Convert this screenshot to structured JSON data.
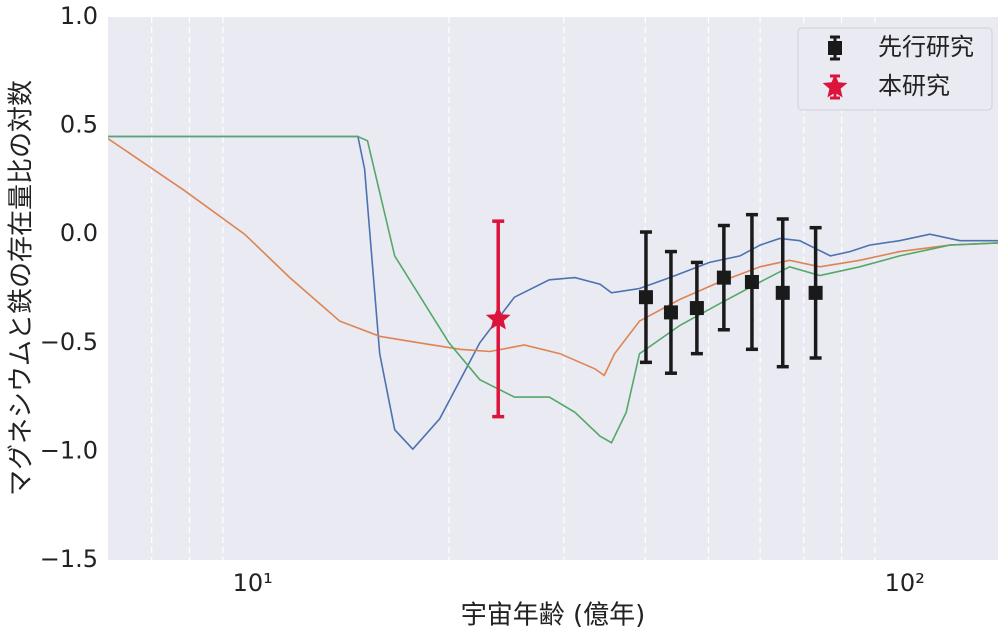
{
  "chart_data": {
    "type": "scatter",
    "xlabel": "宇宙年齢 (億年)",
    "ylabel": "マグネシウムと鉄の存在量比の対数",
    "xscale": "log",
    "xlim": [
      6,
      139
    ],
    "ylim": [
      -1.5,
      1.0
    ],
    "xticks": [
      {
        "value": 10,
        "label": "10¹"
      },
      {
        "value": 100,
        "label": "10²"
      }
    ],
    "xminorticks": [
      7,
      8,
      9,
      20,
      30,
      40,
      50,
      60,
      70,
      80,
      90
    ],
    "yticks": [
      {
        "value": -1.5,
        "label": "−1.5"
      },
      {
        "value": -1.0,
        "label": "−1.0"
      },
      {
        "value": -0.5,
        "label": "−0.5"
      },
      {
        "value": 0.0,
        "label": "0.0"
      },
      {
        "value": 0.5,
        "label": "0.5"
      },
      {
        "value": 1.0,
        "label": "1.0"
      }
    ],
    "grid": true,
    "legend": "upper right",
    "series": [
      {
        "name": "先行研究",
        "color": "#1a1a1a",
        "marker": "square",
        "x": [
          40.1,
          43.8,
          48.0,
          52.8,
          58.3,
          65.0,
          73.0
        ],
        "values": [
          -0.29,
          -0.36,
          -0.34,
          -0.2,
          -0.22,
          -0.27,
          -0.27
        ],
        "errors": [
          0.3,
          0.28,
          0.21,
          0.24,
          0.31,
          0.34,
          0.3
        ]
      },
      {
        "name": "本研究",
        "color": "#dc143c",
        "marker": "star",
        "x": [
          23.8
        ],
        "values": [
          -0.39
        ],
        "errors": [
          0.45
        ]
      }
    ],
    "lines": [
      {
        "color": "#4c72b0",
        "x": [
          6.0,
          14.5,
          14.85,
          15.66,
          16.51,
          17.6,
          19.36,
          22.3,
          25.2,
          28.5,
          31.2,
          34.1,
          35.5,
          39.2,
          43.6,
          50.2,
          55.9,
          60.0,
          64.3,
          69.0,
          76.9,
          82.4,
          88.3,
          98.2,
          109.3,
          121.6,
          139
        ],
        "values": [
          0.45,
          0.45,
          0.3,
          -0.55,
          -0.9,
          -0.99,
          -0.85,
          -0.5,
          -0.29,
          -0.21,
          -0.2,
          -0.23,
          -0.27,
          -0.25,
          -0.2,
          -0.13,
          -0.1,
          -0.05,
          -0.02,
          -0.03,
          -0.1,
          -0.08,
          -0.05,
          -0.03,
          0.0,
          -0.03,
          -0.03
        ]
      },
      {
        "color": "#dd8452",
        "x": [
          6.0,
          7.87,
          9.72,
          11.4,
          13.6,
          15.66,
          18.0,
          20.8,
          23.1,
          26.1,
          29.6,
          33.5,
          34.6,
          35.9,
          39.2,
          45.2,
          52.0,
          60.0,
          66.6,
          74.1,
          85.3,
          98.2,
          117.3,
          139
        ],
        "values": [
          0.44,
          0.2,
          0.0,
          -0.2,
          -0.4,
          -0.47,
          -0.5,
          -0.53,
          -0.54,
          -0.51,
          -0.55,
          -0.62,
          -0.65,
          -0.55,
          -0.4,
          -0.3,
          -0.22,
          -0.15,
          -0.12,
          -0.15,
          -0.12,
          -0.08,
          -0.05,
          -0.04
        ]
      },
      {
        "color": "#55a868",
        "x": [
          6.0,
          14.5,
          15.0,
          16.51,
          20.0,
          22.3,
          25.2,
          28.5,
          31.2,
          34.1,
          35.5,
          37.4,
          39.2,
          45.2,
          52.0,
          60.0,
          66.6,
          74.1,
          85.3,
          98.2,
          117.3,
          139
        ],
        "values": [
          0.45,
          0.45,
          0.43,
          -0.1,
          -0.5,
          -0.67,
          -0.75,
          -0.75,
          -0.82,
          -0.93,
          -0.96,
          -0.82,
          -0.55,
          -0.42,
          -0.32,
          -0.22,
          -0.15,
          -0.19,
          -0.15,
          -0.1,
          -0.05,
          -0.04
        ]
      }
    ]
  }
}
